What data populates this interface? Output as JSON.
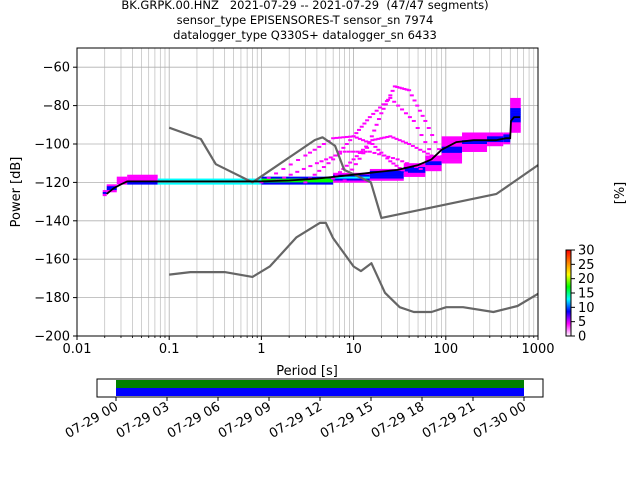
{
  "chart_data": {
    "type": "heatmap",
    "title_lines": [
      "BK.GRPK.00.HNZ   2021-07-29 -- 2021-07-29  (47/47 segments)",
      "sensor_type EPISENSORES-T sensor_sn 7974",
      "datalogger_type Q330S+ datalogger_sn 6433"
    ],
    "xlabel": "Period [s]",
    "ylabel": "Power [dB]",
    "x_scale": "log",
    "xlim": [
      0.01,
      1000
    ],
    "ylim": [
      -200,
      -50
    ],
    "x_ticks": [
      0.01,
      0.1,
      1,
      10,
      100,
      1000
    ],
    "x_tick_labels": [
      "0.01",
      "0.1",
      "1",
      "10",
      "100",
      "1000"
    ],
    "y_ticks": [
      -60,
      -80,
      -100,
      -120,
      -140,
      -160,
      -180,
      -200
    ],
    "y_tick_labels": [
      "−60",
      "−80",
      "−100",
      "−120",
      "−140",
      "−160",
      "−180",
      "−200"
    ],
    "grid": true,
    "colorbar": {
      "label": "[%]",
      "ticks": [
        0,
        5,
        10,
        15,
        20,
        25,
        30
      ],
      "tick_labels": [
        "0",
        "5",
        "10",
        "15",
        "20",
        "25",
        "30"
      ],
      "range": [
        0,
        30
      ],
      "colors": [
        "#ffffff",
        "#ff00ff",
        "#0000ff",
        "#00ffff",
        "#00ff00",
        "#ffff00",
        "#ff8000",
        "#ff0000"
      ]
    },
    "noise_models": [
      {
        "name": "NHNM",
        "color": "#666666",
        "points": [
          [
            0.1,
            -91.5
          ],
          [
            0.22,
            -97.4
          ],
          [
            0.32,
            -110.5
          ],
          [
            0.8,
            -120
          ],
          [
            3.8,
            -97.9
          ],
          [
            4.6,
            -96.5
          ],
          [
            6.3,
            -101
          ],
          [
            7.9,
            -113.5
          ],
          [
            15.4,
            -120
          ],
          [
            20,
            -138.5
          ],
          [
            354.8,
            -126
          ],
          [
            1000,
            -111
          ]
        ]
      },
      {
        "name": "NLNM",
        "color": "#666666",
        "points": [
          [
            0.1,
            -168
          ],
          [
            0.17,
            -166.7
          ],
          [
            0.4,
            -166.7
          ],
          [
            0.8,
            -169.2
          ],
          [
            1.24,
            -163.7
          ],
          [
            2.4,
            -148.6
          ],
          [
            4.3,
            -141.1
          ],
          [
            5,
            -141.1
          ],
          [
            6,
            -149
          ],
          [
            10,
            -163.8
          ],
          [
            12,
            -166.2
          ],
          [
            15.6,
            -162.1
          ],
          [
            21.9,
            -177.5
          ],
          [
            31.6,
            -185
          ],
          [
            45,
            -187.5
          ],
          [
            70,
            -187.5
          ],
          [
            101,
            -185
          ],
          [
            154,
            -185
          ],
          [
            328,
            -187.5
          ],
          [
            600,
            -184.4
          ],
          [
            1000,
            -178
          ]
        ]
      }
    ],
    "mean_curve": {
      "color": "#000000",
      "points": [
        [
          0.021,
          -126
        ],
        [
          0.025,
          -123
        ],
        [
          0.03,
          -121
        ],
        [
          0.035,
          -119.5
        ],
        [
          0.05,
          -119.5
        ],
        [
          0.1,
          -119.5
        ],
        [
          0.5,
          -119.5
        ],
        [
          1,
          -119.5
        ],
        [
          2,
          -119
        ],
        [
          4,
          -118
        ],
        [
          8,
          -116.5
        ],
        [
          15,
          -115
        ],
        [
          30,
          -113.5
        ],
        [
          50,
          -111
        ],
        [
          70,
          -108
        ],
        [
          90,
          -103
        ],
        [
          130,
          -99
        ],
        [
          200,
          -98
        ],
        [
          350,
          -98
        ],
        [
          450,
          -97
        ],
        [
          500,
          -97
        ],
        [
          510,
          -88
        ],
        [
          550,
          -86
        ],
        [
          600,
          -86
        ],
        [
          640,
          -86
        ]
      ]
    },
    "occurrence_cells": [
      {
        "x_range": [
          0.019,
          0.021
        ],
        "y_range": [
          -127,
          -124
        ],
        "percent": 5
      },
      {
        "x_range": [
          0.021,
          0.027
        ],
        "y_range": [
          -125,
          -121
        ],
        "percent": 8
      },
      {
        "x_range": [
          0.027,
          0.035
        ],
        "y_range": [
          -121,
          -117
        ],
        "percent": 5
      },
      {
        "x_range": [
          0.035,
          0.075
        ],
        "y_range": [
          -119,
          -116
        ],
        "percent": 3
      },
      {
        "x_range": [
          0.035,
          0.075
        ],
        "y_range": [
          -121,
          -119
        ],
        "percent": 24
      },
      {
        "x_range": [
          0.075,
          1.0
        ],
        "y_range": [
          -121,
          -118
        ],
        "percent": 30
      },
      {
        "x_range": [
          1.0,
          6.0
        ],
        "y_range": [
          -121,
          -117
        ],
        "percent": 20
      },
      {
        "x_range": [
          6.0,
          15.0
        ],
        "y_range": [
          -120,
          -115
        ],
        "percent": 12
      },
      {
        "x_range": [
          15.0,
          35.0
        ],
        "y_range": [
          -119,
          -113
        ],
        "percent": 8
      },
      {
        "x_range": [
          35.0,
          60.0
        ],
        "y_range": [
          -117,
          -110
        ],
        "percent": 6
      },
      {
        "x_range": [
          60.0,
          90.0
        ],
        "y_range": [
          -114,
          -106
        ],
        "percent": 5
      },
      {
        "x_range": [
          90.0,
          150.0
        ],
        "y_range": [
          -110,
          -96
        ],
        "percent": 5
      },
      {
        "x_range": [
          150.0,
          280.0
        ],
        "y_range": [
          -104,
          -94
        ],
        "percent": 5
      },
      {
        "x_range": [
          280.0,
          420.0
        ],
        "y_range": [
          -101,
          -94
        ],
        "percent": 6
      },
      {
        "x_range": [
          420.0,
          500.0
        ],
        "y_range": [
          -100,
          -94
        ],
        "percent": 8
      },
      {
        "x_range": [
          500.0,
          650.0
        ],
        "y_range": [
          -94,
          -76
        ],
        "percent": 6
      }
    ],
    "sparse_arcs": [
      {
        "points": [
          [
            1,
            -120
          ],
          [
            3,
            -106
          ],
          [
            6,
            -97
          ],
          [
            10,
            -96
          ],
          [
            16,
            -100
          ],
          [
            25,
            -109
          ],
          [
            40,
            -116
          ]
        ],
        "percent": 2
      },
      {
        "points": [
          [
            3,
            -120
          ],
          [
            6,
            -108
          ],
          [
            10,
            -96
          ],
          [
            15,
            -86
          ],
          [
            25,
            -76
          ],
          [
            45,
            -88
          ],
          [
            80,
            -110
          ]
        ],
        "percent": 2
      },
      {
        "points": [
          [
            8,
            -119
          ],
          [
            14,
            -102
          ],
          [
            20,
            -84
          ],
          [
            28,
            -70
          ],
          [
            40,
            -72
          ],
          [
            60,
            -88
          ],
          [
            100,
            -110
          ]
        ],
        "percent": 2
      },
      {
        "points": [
          [
            1.5,
            -119
          ],
          [
            4,
            -110
          ],
          [
            8,
            -104
          ],
          [
            15,
            -104
          ],
          [
            30,
            -108
          ],
          [
            60,
            -114
          ]
        ],
        "percent": 2
      },
      {
        "points": [
          [
            6,
            -118
          ],
          [
            10,
            -108
          ],
          [
            16,
            -98
          ],
          [
            25,
            -96
          ],
          [
            40,
            -100
          ],
          [
            70,
            -106
          ],
          [
            110,
            -110
          ]
        ],
        "percent": 2
      }
    ],
    "timeline": {
      "tick_labels": [
        "07-29 00",
        "07-29 03",
        "07-29 06",
        "07-29 09",
        "07-29 12",
        "07-29 15",
        "07-29 18",
        "07-29 21",
        "07-30 00"
      ],
      "start_hour": 0,
      "end_hour": 24,
      "coverage_hours": [
        0,
        24
      ],
      "coverage_colors": [
        "#008000",
        "#0000ff"
      ]
    }
  }
}
